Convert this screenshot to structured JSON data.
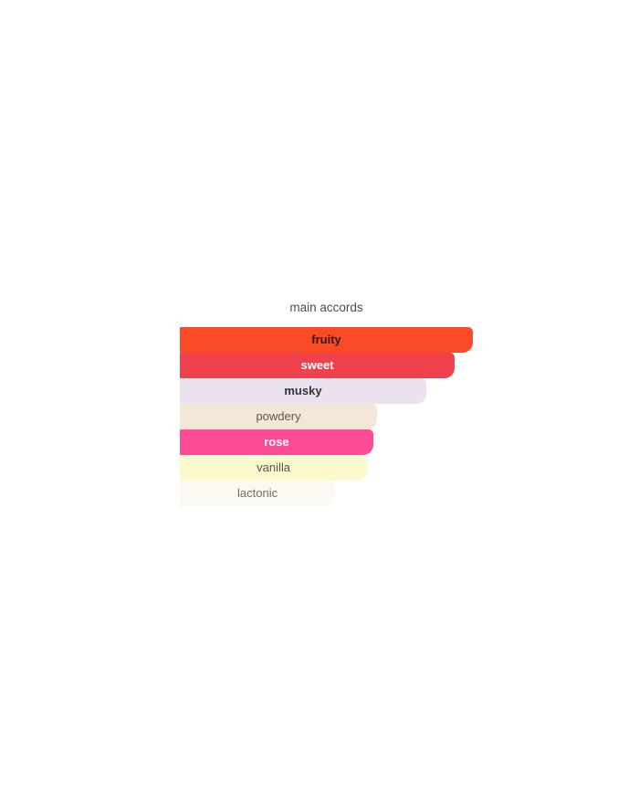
{
  "page": {
    "background": "#ffffff"
  },
  "chart_data": {
    "type": "bar",
    "orientation": "horizontal",
    "title": "main accords",
    "categories": [
      "fruity",
      "sweet",
      "musky",
      "powdery",
      "rose",
      "vanilla",
      "lactonic"
    ],
    "values": [
      100,
      94,
      84,
      67,
      66,
      64,
      53
    ],
    "value_meaning": "accord strength as percent of widest bar",
    "xlim": [
      0,
      100
    ],
    "grid": false,
    "legend": false,
    "bar_colors": [
      "#fa4a26",
      "#ef414b",
      "#ece2ef",
      "#f4e7d7",
      "#fb4c95",
      "#fcfacd",
      "#fcf9f2"
    ]
  },
  "chart": {
    "title": "main accords",
    "title_color": "#4d4d4d",
    "bars": [
      {
        "label": "fruity",
        "width_pct": 100,
        "bg": "#fa4a26",
        "text_color": "#33190b",
        "bold": true
      },
      {
        "label": "sweet",
        "width_pct": 93.8,
        "bg": "#ef414b",
        "text_color": "#ffffff",
        "bold": true
      },
      {
        "label": "musky",
        "width_pct": 84.1,
        "bg": "#ece2ef",
        "text_color": "#333136",
        "bold": true
      },
      {
        "label": "powdery",
        "width_pct": 67.3,
        "bg": "#f4e7d7",
        "text_color": "#5c5853",
        "bold": false
      },
      {
        "label": "rose",
        "width_pct": 66.0,
        "bg": "#fb4c95",
        "text_color": "#ffffff",
        "bold": true
      },
      {
        "label": "vanilla",
        "width_pct": 63.9,
        "bg": "#fcfacd",
        "text_color": "#57534b",
        "bold": false
      },
      {
        "label": "lactonic",
        "width_pct": 53.0,
        "bg": "#fcf9f2",
        "text_color": "#6f6b66",
        "bold": false
      }
    ]
  }
}
